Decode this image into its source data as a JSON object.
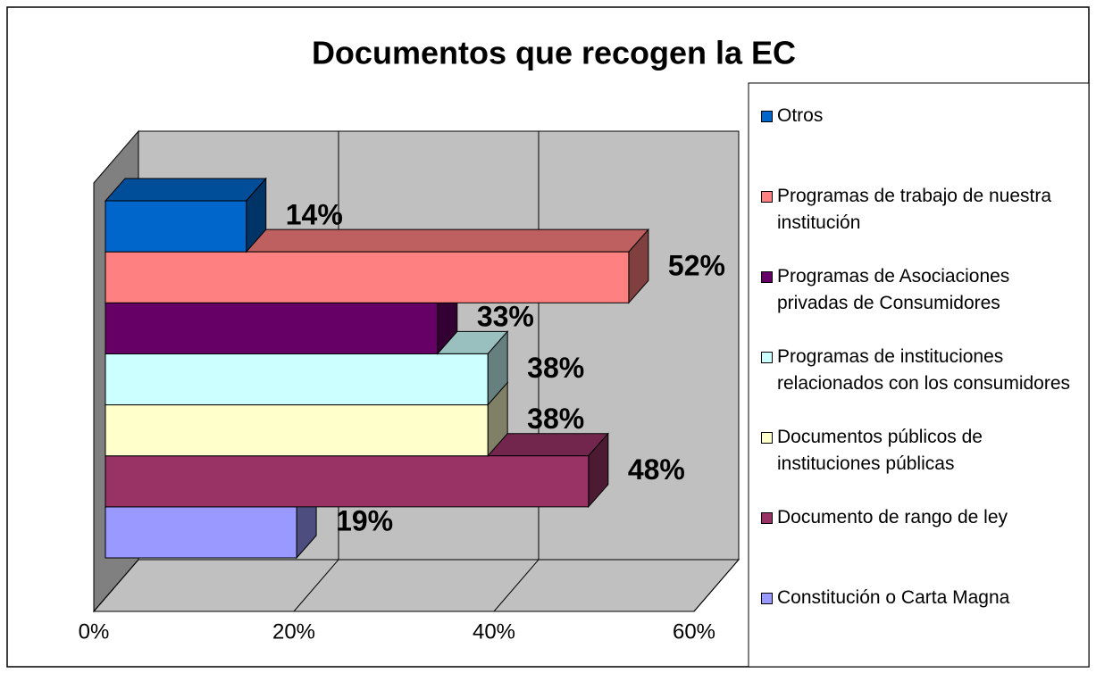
{
  "chart_data": {
    "type": "bar3d_horizontal",
    "title": "Documentos que recogen la EC",
    "series": [
      {
        "name": "Otros",
        "color": "#0066cc",
        "values": [
          14
        ],
        "value_labels": [
          "14%"
        ]
      },
      {
        "name": "Programas de trabajo de nuestra institución",
        "color": "#ff8080",
        "values": [
          52
        ],
        "value_labels": [
          "52%"
        ]
      },
      {
        "name": "Programas de Asociaciones privadas de Consumidores",
        "color": "#660066",
        "values": [
          33
        ],
        "value_labels": [
          "33%"
        ]
      },
      {
        "name": "Programas de instituciones relacionados con los consumidores",
        "color": "#ccffff",
        "values": [
          38
        ],
        "value_labels": [
          "38%"
        ]
      },
      {
        "name": "Documentos públicos de instituciones públicas",
        "color": "#ffffcc",
        "values": [
          38
        ],
        "value_labels": [
          "38%"
        ]
      },
      {
        "name": "Documento de rango de ley",
        "color": "#993366",
        "values": [
          48
        ],
        "value_labels": [
          "48%"
        ]
      },
      {
        "name": "Constitución o Carta Magna",
        "color": "#9999ff",
        "values": [
          19
        ],
        "value_labels": [
          "19%"
        ]
      }
    ],
    "xlim": [
      0,
      60
    ],
    "xticks": [
      {
        "value": 0,
        "label": "0%"
      },
      {
        "value": 20,
        "label": "20%"
      },
      {
        "value": 40,
        "label": "40%"
      },
      {
        "value": 60,
        "label": "60%"
      }
    ],
    "grid": true
  }
}
